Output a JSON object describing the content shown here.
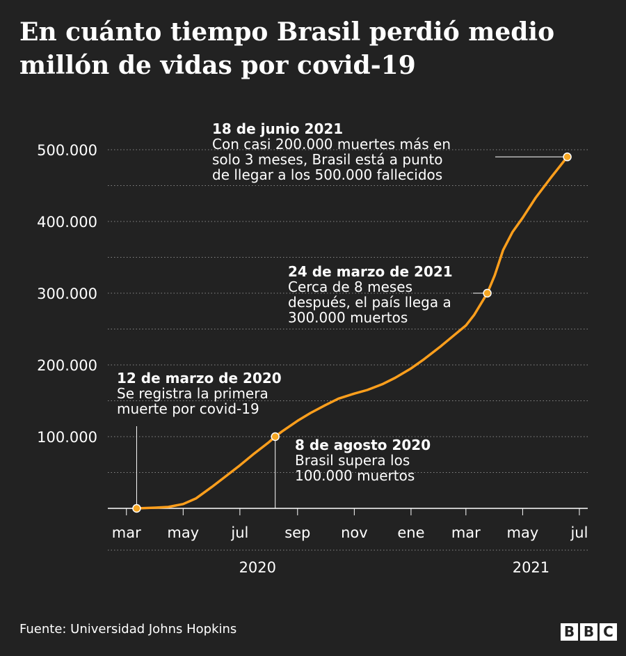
{
  "title": "En cuánto tiempo Brasil perdió medio millón de vidas por covid-19",
  "source": "Fuente: Universidad Johns Hopkins",
  "logo": [
    "B",
    "B",
    "C"
  ],
  "colors": {
    "background": "#222222",
    "line": "#ff9f1c",
    "marker": "#f5a623",
    "text": "#ffffff",
    "grid": "#888888"
  },
  "chart_data": {
    "type": "line",
    "title": "En cuánto tiempo Brasil perdió medio millón de vidas por covid-19",
    "xlabel": "",
    "ylabel": "",
    "x_range": [
      "2020-02-10",
      "2021-07-10"
    ],
    "ylim": [
      0,
      500000
    ],
    "y_ticks": [
      100000,
      200000,
      300000,
      400000,
      500000
    ],
    "y_tick_labels": [
      "100.000",
      "200.000",
      "300.000",
      "400.000",
      "500.000"
    ],
    "x_ticks": [
      {
        "date": "2020-03-01",
        "label": "mar"
      },
      {
        "date": "2020-05-01",
        "label": "may"
      },
      {
        "date": "2020-07-01",
        "label": "jul"
      },
      {
        "date": "2020-09-01",
        "label": "sep"
      },
      {
        "date": "2020-11-01",
        "label": "nov"
      },
      {
        "date": "2021-01-01",
        "label": "ene"
      },
      {
        "date": "2021-03-01",
        "label": "mar"
      },
      {
        "date": "2021-05-01",
        "label": "may"
      },
      {
        "date": "2021-07-01",
        "label": "jul"
      }
    ],
    "year_labels": [
      {
        "date": "2020-07-20",
        "label": "2020"
      },
      {
        "date": "2021-05-10",
        "label": "2021"
      }
    ],
    "grid": true,
    "series": [
      {
        "points": [
          [
            "2020-03-12",
            1
          ],
          [
            "2020-04-01",
            1000
          ],
          [
            "2020-04-15",
            1900
          ],
          [
            "2020-05-01",
            6000
          ],
          [
            "2020-05-15",
            14000
          ],
          [
            "2020-06-01",
            30000
          ],
          [
            "2020-06-15",
            44000
          ],
          [
            "2020-07-01",
            60000
          ],
          [
            "2020-07-15",
            75000
          ],
          [
            "2020-08-01",
            92000
          ],
          [
            "2020-08-08",
            100000
          ],
          [
            "2020-08-15",
            107000
          ],
          [
            "2020-09-01",
            122000
          ],
          [
            "2020-09-15",
            133000
          ],
          [
            "2020-10-01",
            144000
          ],
          [
            "2020-10-15",
            153000
          ],
          [
            "2020-11-01",
            160000
          ],
          [
            "2020-11-15",
            165000
          ],
          [
            "2020-12-01",
            173000
          ],
          [
            "2020-12-15",
            182000
          ],
          [
            "2021-01-01",
            195000
          ],
          [
            "2021-01-15",
            208000
          ],
          [
            "2021-02-01",
            225000
          ],
          [
            "2021-02-15",
            240000
          ],
          [
            "2021-03-01",
            255000
          ],
          [
            "2021-03-10",
            270000
          ],
          [
            "2021-03-24",
            300000
          ],
          [
            "2021-04-01",
            325000
          ],
          [
            "2021-04-10",
            360000
          ],
          [
            "2021-04-20",
            385000
          ],
          [
            "2021-05-01",
            405000
          ],
          [
            "2021-05-15",
            433000
          ],
          [
            "2021-06-01",
            462000
          ],
          [
            "2021-06-18",
            490000
          ]
        ]
      }
    ],
    "annotations": [
      {
        "date": "2020-03-12",
        "value": 1,
        "title": "12 de marzo de 2020",
        "lines": [
          "Se registra la primera",
          "muerte por covid-19"
        ]
      },
      {
        "date": "2020-08-08",
        "value": 100000,
        "title": "8 de agosto 2020",
        "lines": [
          "Brasil supera los",
          "100.000 muertos"
        ]
      },
      {
        "date": "2021-03-24",
        "value": 300000,
        "title": "24 de marzo de 2021",
        "lines": [
          "Cerca de 8 meses",
          "después, el país llega a",
          "300.000 muertos"
        ]
      },
      {
        "date": "2021-06-18",
        "value": 490000,
        "title": "18 de junio 2021",
        "lines": [
          "Con casi 200.000 muertes más en",
          "solo 3 meses, Brasil está a punto",
          "de llegar a los 500.000  fallecidos"
        ]
      }
    ]
  }
}
